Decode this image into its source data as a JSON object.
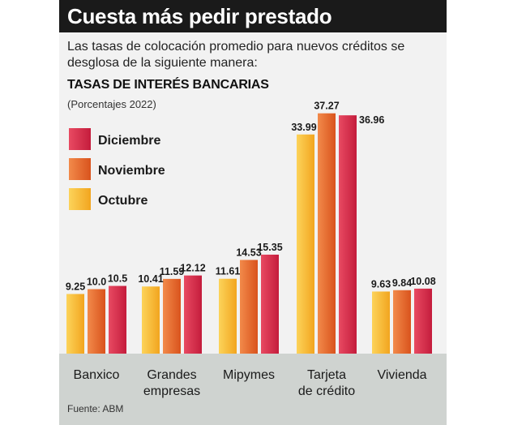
{
  "header": {
    "title": "Cuesta más pedir prestado",
    "subtitle": "Las tasas de colocación promedio para nuevos créditos se desglosa de la siguiente manera:"
  },
  "chart_data": {
    "type": "bar",
    "title": "TASAS DE INTERÉS BANCARIAS",
    "subtitle": "(Porcentajes 2022)",
    "categories": [
      [
        "Banxico"
      ],
      [
        "Grandes",
        "empresas"
      ],
      [
        "Mipymes"
      ],
      [
        "Tarjeta",
        "de crédito"
      ],
      [
        "Vivienda"
      ]
    ],
    "series": [
      {
        "name": "Octubre",
        "color": "#f7b733",
        "values": [
          9.25,
          10.41,
          11.61,
          33.99,
          9.63
        ],
        "labels": [
          "9.25",
          "10.41",
          "11.61",
          "33.99",
          "9.63"
        ]
      },
      {
        "name": "Noviembre",
        "color": "#e8682e",
        "values": [
          10.0,
          11.59,
          14.53,
          37.27,
          9.84
        ],
        "labels": [
          "10.0",
          "11.59",
          "14.53",
          "37.27",
          "9.84"
        ]
      },
      {
        "name": "Diciembre",
        "color": "#d62a4a",
        "values": [
          10.5,
          12.12,
          15.35,
          36.96,
          10.08
        ],
        "labels": [
          "10.5",
          "12.12",
          "15.35",
          "36.96",
          "10.08"
        ]
      }
    ],
    "legend": {
      "order": [
        "Diciembre",
        "Noviembre",
        "Octubre"
      ],
      "placement": "top-left"
    },
    "ylim": [
      0,
      40
    ],
    "grid": false
  },
  "footer": {
    "source": "Fuente: ABM"
  }
}
